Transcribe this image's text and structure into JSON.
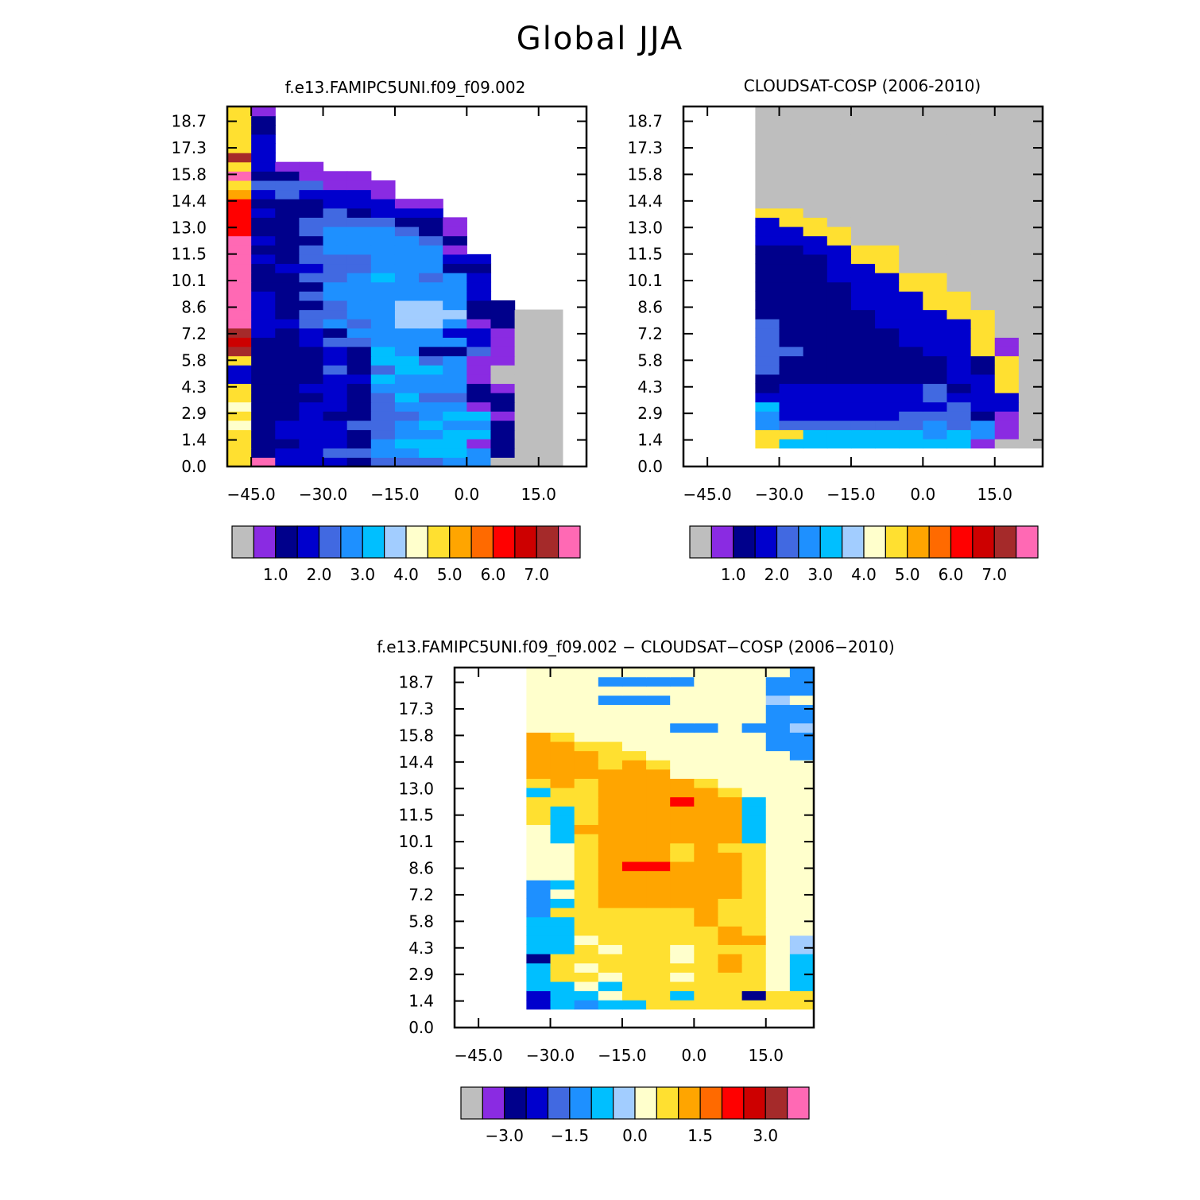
{
  "figure_title": "Global JJA",
  "colorbar_abs": {
    "colors": [
      "#bebebe",
      "#8a2be2",
      "#00008b",
      "#0000cd",
      "#4169e1",
      "#1e90ff",
      "#00bfff",
      "#a2cdff",
      "#ffffcc",
      "#ffe030",
      "#ffa500",
      "#ff6a00",
      "#ff0000",
      "#cd0000",
      "#a52a2a",
      "#ff69b4"
    ],
    "labels": [
      "1.0",
      "2.0",
      "3.0",
      "4.0",
      "5.0",
      "6.0",
      "7.0"
    ]
  },
  "colorbar_diff": {
    "colors": [
      "#bebebe",
      "#8a2be2",
      "#00008b",
      "#0000cd",
      "#4169e1",
      "#1e90ff",
      "#00bfff",
      "#a2cdff",
      "#ffffcc",
      "#ffe030",
      "#ffa500",
      "#ff6a00",
      "#ff0000",
      "#cd0000",
      "#a52a2a",
      "#ff69b4"
    ],
    "labels": [
      "−3.0",
      "−1.5",
      "0.0",
      "1.5",
      "3.0"
    ]
  },
  "chart_data": [
    {
      "type": "heatmap",
      "title": "f.e13.FAMIPC5UNI.f09_f09.002",
      "x_ticklabels": [
        "−45.0",
        "−30.0",
        "−15.0",
        "0.0",
        "15.0"
      ],
      "y_ticklabels": [
        "0.0",
        "1.4",
        "2.9",
        "4.3",
        "5.8",
        "7.2",
        "8.6",
        "10.1",
        "11.5",
        "13.0",
        "14.4",
        "15.8",
        "17.3",
        "18.7"
      ],
      "x_range": [
        -50,
        25
      ],
      "y_range": [
        0,
        19.5
      ],
      "x_cells": [
        -47.5,
        -42.5,
        -37.5,
        -32.5,
        -27.5,
        -22.5,
        -17.5,
        -12.5,
        -7.5,
        -2.5,
        2.5,
        7.5,
        12.5,
        17.5
      ],
      "y_edges": [
        0,
        0.5,
        1,
        1.5,
        2,
        2.5,
        3,
        3.5,
        4,
        4.5,
        5,
        5.5,
        6,
        6.5,
        7,
        7.5,
        8,
        8.5,
        9,
        9.5,
        10,
        10.5,
        11,
        11.5,
        12,
        12.5,
        13,
        13.5,
        14,
        14.5,
        15,
        15.5,
        16,
        16.5,
        17,
        17.5,
        18,
        18.5,
        19,
        19.5
      ],
      "grid_rows_bottom_to_top": [
        "APBBBCDDD77000",
        "9CBBDDEEHHE500",
        "9CCBBCE6HH4500",
        "ACBBBCDEEH6200",
        "8CBBBDDE6EE200",
        "AC2BCCDDE66100",
        "8C2BBCDEEE4200",
        "9C22BCD6DD5200",
        "AC2BBCEEEE5100",
        "BC22BB6EEE4000",
        "BC22DCD66E4000",
        "AC22BC66DE4100",
        "OC22BC6E55D100",
        "NC2BDDEEEE3100",
        "OB2BCEEEE33100",
        "PB3DEDEGGE4200",
        "PB2DDEEGGF2200",
        "PB2CDEEFFE22",
        "PB2DEEEEEE3",
        "PCCCEEEEEE3",
        "PCCDDE6EDE3",
        "PCBBDDEEEC2",
        "PBCDDDEEE33",
        "PCCDEEEEE4",
        "PBCCEEEEDC",
        "MCCDEEEDC1",
        "MCCDDDDCC1",
        "MBCCDCBBB",
        "MC2CBBB11",
        "LBDBBB1",
        "9DDD111",
        "PCC111",
        "AB11",
        "OB",
        "AB",
        "AB",
        "A5",
        "A2",
        "A1"
      ]
    },
    {
      "type": "heatmap",
      "title": "CLOUDSAT-COSP (2006-2010)",
      "x_ticklabels": [
        "−45.0",
        "−30.0",
        "−15.0",
        "0.0",
        "15.0"
      ],
      "y_ticklabels": [
        "0.0",
        "1.4",
        "2.9",
        "4.3",
        "5.8",
        "7.2",
        "8.6",
        "10.1",
        "11.5",
        "13.0",
        "14.4",
        "15.8",
        "17.3",
        "18.7"
      ],
      "x_range": [
        -50,
        25
      ],
      "y_range": [
        0,
        19.5
      ],
      "x_cells": [
        -32.5,
        -27.5,
        -22.5,
        -17.5,
        -12.5,
        -7.5,
        -2.5,
        2.5,
        7.5,
        12.5,
        17.5,
        22.5
      ],
      "y_edges": [
        1,
        1.5,
        2,
        2.5,
        3,
        3.5,
        4,
        4.5,
        5,
        5.5,
        6,
        6.5,
        7,
        7.5,
        8,
        8.5,
        9,
        9.5,
        10,
        10.5,
        11,
        11.5,
        12,
        12.5,
        13,
        13.5,
        14,
        14.5,
        15,
        15.5,
        16,
        16.5,
        17,
        17.5,
        18,
        18.5,
        19,
        19.5
      ],
      "grid_rows_bottom_to_top": [
        "JH66666H61000",
        "II66666E6E100",
        "EDDDDDDEDE100",
        "EBBBBBDDDC100",
        "6BBBBBBBDBB00",
        "BBBBBBBDBBB00",
        "CBBBBBBDCBA00",
        "CCCCCCCCBBA00",
        "DCCCCCCCBCA00",
        "DCCCCCCCBCA00",
        "DDCCCCCBBA100",
        "DCCCCCBBBA100",
        "DCCCCCBBBA000",
        "DCCCCBBBBA000",
        "CCCCCBBBAA000",
        "CCCCBBBAA0000",
        "CCCCBBBAA0000",
        "CCCCBBAA00000",
        "CCCBBBAA00000",
        "CCCBBA0000000",
        "CCCBAA0000000",
        "CCBBAA0000000",
        "BBBA000000000",
        "BBAA000000000",
        "BAA0000000000",
        "AA00000000000",
        "0000000000000",
        "0000000000000",
        "0000000000000",
        "0000000000000",
        "0000000000000",
        "0000000000000",
        "0000000000000",
        "0000000000000",
        "0000000000000",
        "0000000000000",
        "0000000000000"
      ]
    },
    {
      "type": "heatmap",
      "title": "f.e13.FAMIPC5UNI.f09_f09.002 − CLOUDSAT−COSP (2006−2010)",
      "x_ticklabels": [
        "−45.0",
        "−30.0",
        "−15.0",
        "0.0",
        "15.0"
      ],
      "y_ticklabels": [
        "0.0",
        "1.4",
        "2.9",
        "4.3",
        "5.8",
        "7.2",
        "8.6",
        "10.1",
        "11.5",
        "13.0",
        "14.4",
        "15.8",
        "17.3",
        "18.7"
      ],
      "x_range": [
        -50,
        25
      ],
      "y_range": [
        0,
        19.5
      ],
      "x_cells": [
        -32.5,
        -27.5,
        -22.5,
        -17.5,
        -12.5,
        -7.5,
        -2.5,
        2.5,
        7.5,
        12.5,
        17.5,
        22.5
      ],
      "y_edges": [
        1,
        1.5,
        2,
        2.5,
        3,
        3.5,
        4,
        4.5,
        5,
        5.5,
        6,
        6.5,
        7,
        7.5,
        8,
        8.5,
        9,
        9.5,
        10,
        10.5,
        11,
        11.5,
        12,
        12.5,
        13,
        13.5,
        14,
        14.5,
        15,
        15.5,
        16,
        16.5,
        17,
        17.5,
        18,
        18.5,
        19,
        19.5
      ],
      "grid_rows_bottom_to_top": [
        "3676699J9IJI",
        "36H8J9H9JCII",
        "6H8HJ9JJJI8H",
        "6JJ8JJ8JJI8H",
        "6J8JJJJJK98H",
        "5JJJJJ8JK98H",
        "6HJ8JJ8JJ98G",
        "6H8JJJJJKK8G",
        "6HJJJJJJKJ88",
        "6HJJJJJKJJ88",
        "7JJJJJJKJJ88",
        "7HJKKKKKJ988",
        "78JKKKKKKJ88",
        "7HJKLKKLKJ88",
        "88JKKKKKKJ88",
        "88JKMMKKKJ88",
        "88JKLKJKLJ88",
        "88JKLKJKJJ88",
        "8HJKLLKLKH88",
        "8HKKLLKLKH88",
        "JHJKLLKLKH88",
        "JHJKKLLLLH88",
        "JJJKKLMKKH88",
        "HJJKLLLLJ888",
        "JKJKLLLJ8888",
        "KLLKKK888888",
        "KLLJKJ888888",
        "LLKJJ8888887",
        "KLJJ88888877",
        "KJ8888888877",
        "88888877877G",
        "888888888877",
        "888888888877",
        "8887778888G8",
        "888888888877",
        "888777788877",
        "888888888887",
        "888888888887",
        "888888888887"
      ]
    }
  ]
}
